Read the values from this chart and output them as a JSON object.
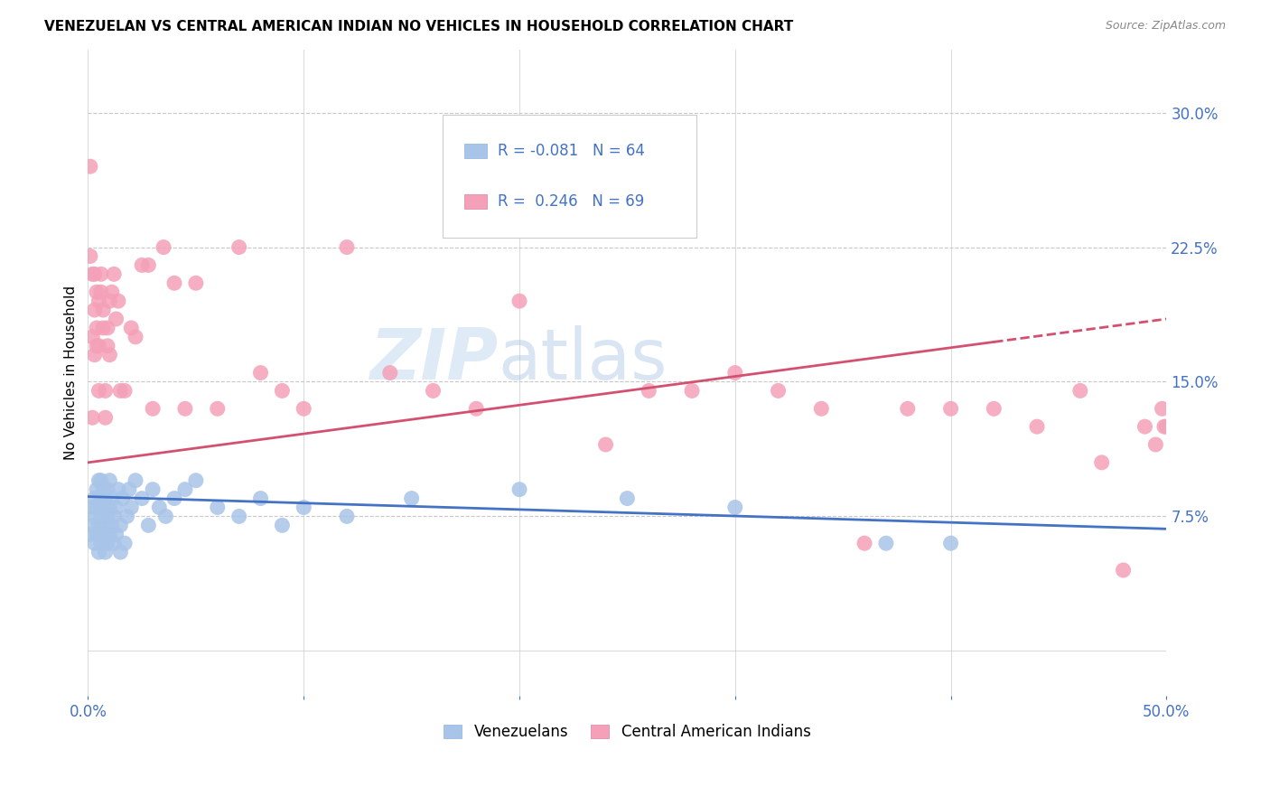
{
  "title": "VENEZUELAN VS CENTRAL AMERICAN INDIAN NO VEHICLES IN HOUSEHOLD CORRELATION CHART",
  "source": "Source: ZipAtlas.com",
  "ylabel": "No Vehicles in Household",
  "yticks": [
    "7.5%",
    "15.0%",
    "22.5%",
    "30.0%"
  ],
  "ytick_vals": [
    0.075,
    0.15,
    0.225,
    0.3
  ],
  "xlim": [
    0.0,
    0.5
  ],
  "ylim": [
    -0.025,
    0.335
  ],
  "legend_label1": "Venezuelans",
  "legend_label2": "Central American Indians",
  "R1": -0.081,
  "N1": 64,
  "R2": 0.246,
  "N2": 69,
  "color_blue": "#a8c4e8",
  "color_pink": "#f4a0b8",
  "line_blue": "#4472c4",
  "line_pink": "#d45070",
  "watermark_zip": "ZIP",
  "watermark_atlas": "atlas",
  "venezuelan_x": [
    0.001,
    0.002,
    0.002,
    0.003,
    0.003,
    0.003,
    0.004,
    0.004,
    0.004,
    0.005,
    0.005,
    0.005,
    0.005,
    0.006,
    0.006,
    0.006,
    0.006,
    0.007,
    0.007,
    0.007,
    0.008,
    0.008,
    0.008,
    0.009,
    0.009,
    0.009,
    0.01,
    0.01,
    0.01,
    0.011,
    0.011,
    0.012,
    0.012,
    0.013,
    0.013,
    0.014,
    0.015,
    0.015,
    0.016,
    0.017,
    0.018,
    0.019,
    0.02,
    0.022,
    0.025,
    0.028,
    0.03,
    0.033,
    0.036,
    0.04,
    0.045,
    0.05,
    0.06,
    0.07,
    0.08,
    0.09,
    0.1,
    0.12,
    0.15,
    0.2,
    0.25,
    0.3,
    0.37,
    0.4
  ],
  "venezuelan_y": [
    0.065,
    0.07,
    0.08,
    0.06,
    0.075,
    0.085,
    0.065,
    0.08,
    0.09,
    0.055,
    0.07,
    0.08,
    0.095,
    0.06,
    0.075,
    0.085,
    0.095,
    0.065,
    0.08,
    0.09,
    0.055,
    0.07,
    0.085,
    0.06,
    0.075,
    0.09,
    0.065,
    0.08,
    0.095,
    0.07,
    0.085,
    0.06,
    0.075,
    0.065,
    0.08,
    0.09,
    0.055,
    0.07,
    0.085,
    0.06,
    0.075,
    0.09,
    0.08,
    0.095,
    0.085,
    0.07,
    0.09,
    0.08,
    0.075,
    0.085,
    0.09,
    0.095,
    0.08,
    0.075,
    0.085,
    0.07,
    0.08,
    0.075,
    0.085,
    0.09,
    0.085,
    0.08,
    0.06,
    0.06
  ],
  "central_x": [
    0.001,
    0.001,
    0.002,
    0.002,
    0.002,
    0.003,
    0.003,
    0.003,
    0.004,
    0.004,
    0.004,
    0.005,
    0.005,
    0.005,
    0.006,
    0.006,
    0.007,
    0.007,
    0.008,
    0.008,
    0.009,
    0.009,
    0.01,
    0.01,
    0.011,
    0.012,
    0.013,
    0.014,
    0.015,
    0.017,
    0.02,
    0.022,
    0.025,
    0.028,
    0.03,
    0.035,
    0.04,
    0.045,
    0.05,
    0.06,
    0.07,
    0.08,
    0.09,
    0.1,
    0.12,
    0.14,
    0.16,
    0.18,
    0.2,
    0.22,
    0.24,
    0.26,
    0.28,
    0.3,
    0.32,
    0.34,
    0.36,
    0.38,
    0.4,
    0.42,
    0.44,
    0.46,
    0.47,
    0.48,
    0.49,
    0.495,
    0.498,
    0.499,
    0.5
  ],
  "central_y": [
    0.22,
    0.27,
    0.21,
    0.175,
    0.13,
    0.19,
    0.165,
    0.21,
    0.17,
    0.2,
    0.18,
    0.145,
    0.17,
    0.195,
    0.2,
    0.21,
    0.18,
    0.19,
    0.13,
    0.145,
    0.18,
    0.17,
    0.165,
    0.195,
    0.2,
    0.21,
    0.185,
    0.195,
    0.145,
    0.145,
    0.18,
    0.175,
    0.215,
    0.215,
    0.135,
    0.225,
    0.205,
    0.135,
    0.205,
    0.135,
    0.225,
    0.155,
    0.145,
    0.135,
    0.225,
    0.155,
    0.145,
    0.135,
    0.195,
    0.29,
    0.115,
    0.145,
    0.145,
    0.155,
    0.145,
    0.135,
    0.06,
    0.135,
    0.135,
    0.135,
    0.125,
    0.145,
    0.105,
    0.045,
    0.125,
    0.115,
    0.135,
    0.125,
    0.125
  ]
}
